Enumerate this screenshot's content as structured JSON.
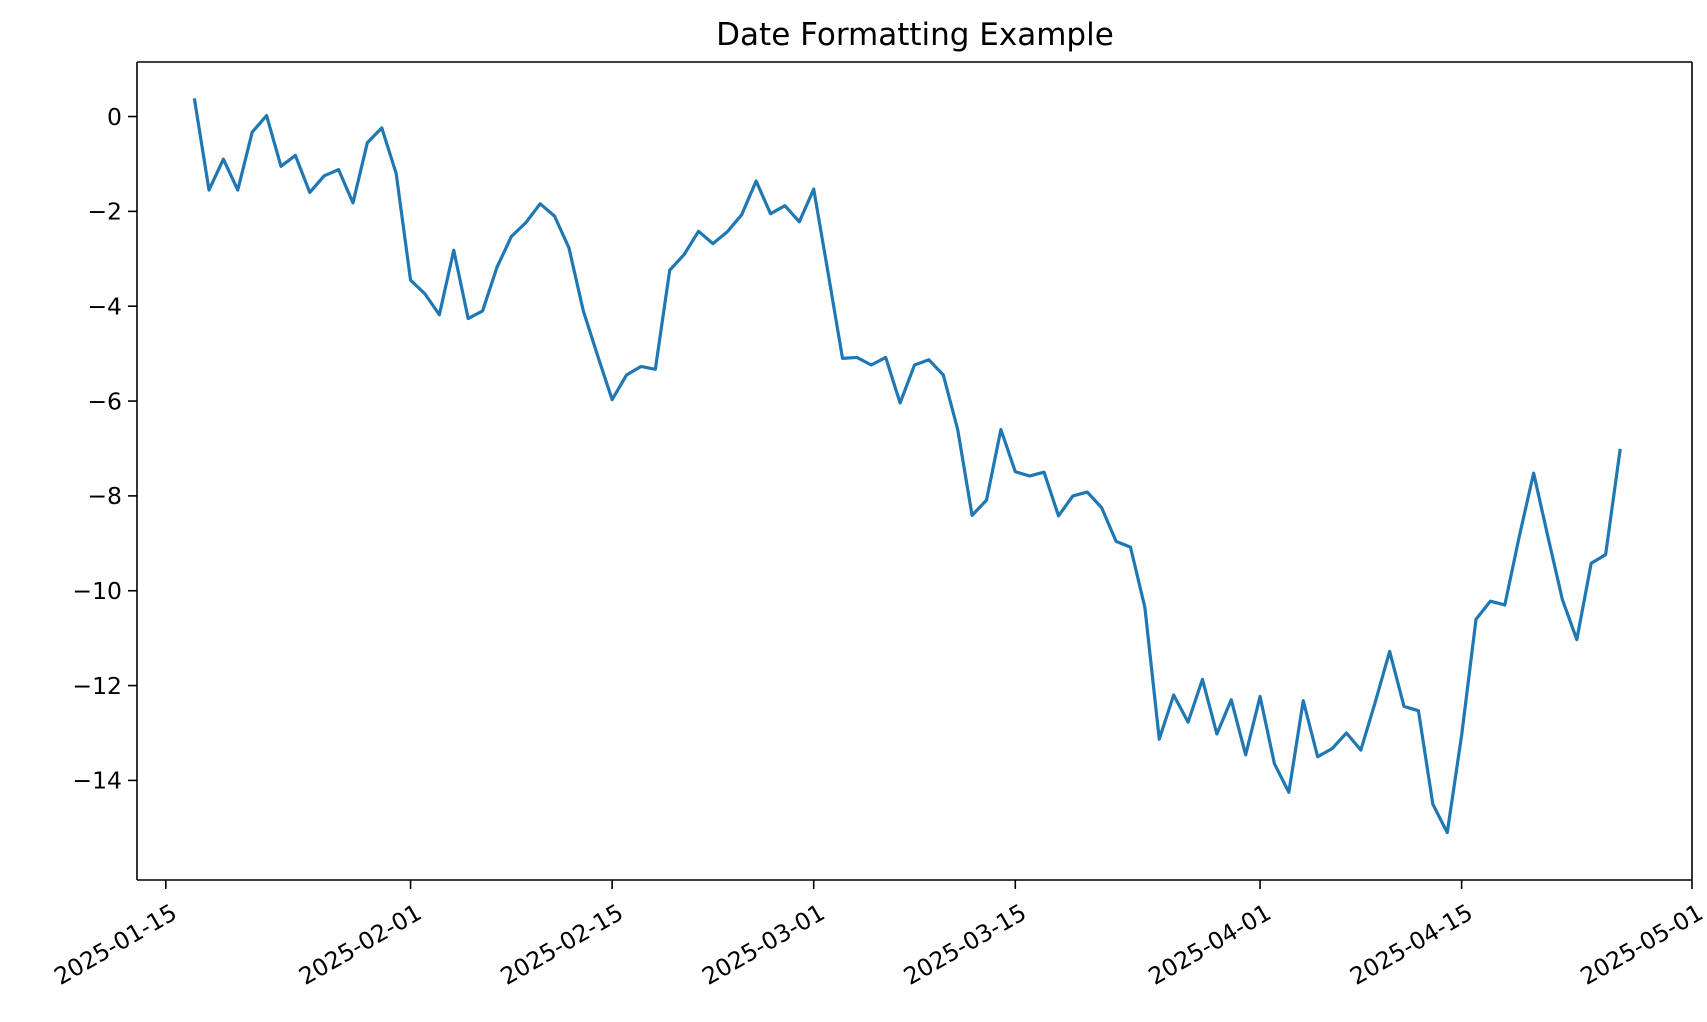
{
  "chart_data": {
    "type": "line",
    "title": "Date Formatting Example",
    "xlabel": "",
    "ylabel": "",
    "x_axis_type": "date",
    "xlim": [
      "2025-01-13",
      "2025-05-01"
    ],
    "ylim": [
      -16.1,
      1.15
    ],
    "grid": false,
    "line_color": "#1f77b4",
    "x_ticks": [
      "2025-01-15",
      "2025-02-01",
      "2025-02-15",
      "2025-03-01",
      "2025-03-15",
      "2025-04-01",
      "2025-04-15",
      "2025-05-01"
    ],
    "y_ticks": [
      0,
      -2,
      -4,
      -6,
      -8,
      -10,
      -12,
      -14
    ],
    "y_tick_labels": [
      "0",
      "−2",
      "−4",
      "−6",
      "−8",
      "−10",
      "−12",
      "−14"
    ],
    "series": [
      {
        "x": [
          "2025-01-17",
          "2025-01-18",
          "2025-01-19",
          "2025-01-20",
          "2025-01-21",
          "2025-01-22",
          "2025-01-23",
          "2025-01-24",
          "2025-01-25",
          "2025-01-26",
          "2025-01-27",
          "2025-01-28",
          "2025-01-29",
          "2025-01-30",
          "2025-01-31",
          "2025-02-01",
          "2025-02-02",
          "2025-02-03",
          "2025-02-04",
          "2025-02-05",
          "2025-02-06",
          "2025-02-07",
          "2025-02-08",
          "2025-02-09",
          "2025-02-10",
          "2025-02-11",
          "2025-02-12",
          "2025-02-13",
          "2025-02-14",
          "2025-02-15",
          "2025-02-16",
          "2025-02-17",
          "2025-02-18",
          "2025-02-19",
          "2025-02-20",
          "2025-02-21",
          "2025-02-22",
          "2025-02-23",
          "2025-02-24",
          "2025-02-25",
          "2025-02-26",
          "2025-02-27",
          "2025-02-28",
          "2025-03-01",
          "2025-03-02",
          "2025-03-03",
          "2025-03-04",
          "2025-03-05",
          "2025-03-06",
          "2025-03-07",
          "2025-03-08",
          "2025-03-09",
          "2025-03-10",
          "2025-03-11",
          "2025-03-12",
          "2025-03-13",
          "2025-03-14",
          "2025-03-15",
          "2025-03-16",
          "2025-03-17",
          "2025-03-18",
          "2025-03-19",
          "2025-03-20",
          "2025-03-21",
          "2025-03-22",
          "2025-03-23",
          "2025-03-24",
          "2025-03-25",
          "2025-03-26",
          "2025-03-27",
          "2025-03-28",
          "2025-03-29",
          "2025-03-30",
          "2025-03-31",
          "2025-04-01",
          "2025-04-02",
          "2025-04-03",
          "2025-04-04",
          "2025-04-05",
          "2025-04-06",
          "2025-04-07",
          "2025-04-08",
          "2025-04-09",
          "2025-04-10",
          "2025-04-11",
          "2025-04-12",
          "2025-04-13",
          "2025-04-14",
          "2025-04-15",
          "2025-04-16",
          "2025-04-17",
          "2025-04-18",
          "2025-04-19",
          "2025-04-20",
          "2025-04-21",
          "2025-04-22",
          "2025-04-23",
          "2025-04-24",
          "2025-04-25",
          "2025-04-26"
        ],
        "y": [
          0.35,
          -1.55,
          -0.9,
          -1.55,
          -0.33,
          0.02,
          -1.05,
          -0.82,
          -1.6,
          -1.25,
          -1.12,
          -1.82,
          -0.55,
          -0.24,
          -1.2,
          -3.45,
          -3.74,
          -4.18,
          -2.82,
          -4.26,
          -4.1,
          -3.18,
          -2.53,
          -2.24,
          -1.84,
          -2.1,
          -2.77,
          -4.1,
          -5.05,
          -5.97,
          -5.45,
          -5.27,
          -5.33,
          -3.24,
          -2.91,
          -2.42,
          -2.68,
          -2.43,
          -2.07,
          -1.36,
          -2.05,
          -1.88,
          -2.22,
          -1.53,
          -3.3,
          -5.1,
          -5.08,
          -5.24,
          -5.08,
          -6.04,
          -5.24,
          -5.13,
          -5.45,
          -6.6,
          -8.41,
          -8.09,
          -6.6,
          -7.49,
          -7.58,
          -7.5,
          -8.42,
          -8.0,
          -7.92,
          -8.25,
          -8.96,
          -9.08,
          -10.35,
          -13.13,
          -12.2,
          -12.77,
          -11.87,
          -13.02,
          -12.3,
          -13.46,
          -12.23,
          -13.65,
          -14.25,
          -12.32,
          -13.5,
          -13.33,
          -13.0,
          -13.36,
          -12.35,
          -11.28,
          -12.44,
          -12.53,
          -14.5,
          -15.1,
          -13.05,
          -10.6,
          -10.22,
          -10.3,
          -8.86,
          -7.52,
          -8.87,
          -10.19,
          -11.03,
          -9.42,
          -9.24,
          -7.04
        ]
      }
    ]
  }
}
